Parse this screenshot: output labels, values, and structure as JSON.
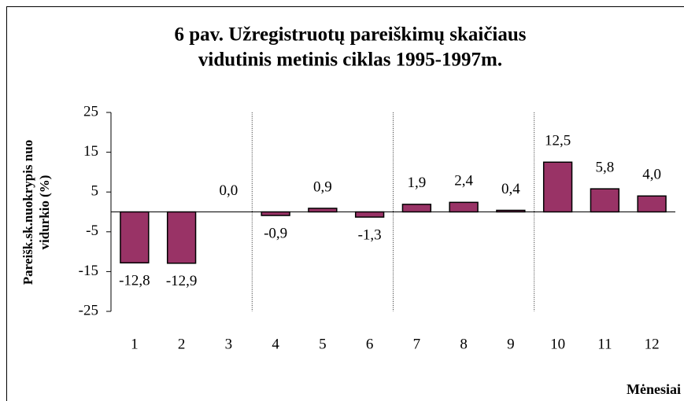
{
  "chart_data": {
    "type": "bar",
    "title": [
      "6 pav. Užregistruotų pareiškimų skaičiaus",
      "vidutinis metinis ciklas 1995-1997m."
    ],
    "y_label": [
      "Pareišk.sk.nuokrypis nuo",
      "vidurkio (%)"
    ],
    "x_label": "Mėnesiai",
    "categories": [
      "1",
      "2",
      "3",
      "4",
      "5",
      "6",
      "7",
      "8",
      "9",
      "10",
      "11",
      "12"
    ],
    "values": [
      -12.8,
      -12.9,
      0.0,
      -0.9,
      0.9,
      -1.3,
      1.9,
      2.4,
      0.4,
      12.5,
      5.8,
      4.0
    ],
    "value_labels": [
      "-12,8",
      "-12,9",
      "0,0",
      "-0,9",
      "0,9",
      "-1,3",
      "1,9",
      "2,4",
      "0,4",
      "12,5",
      "5,8",
      "4,0"
    ],
    "color": "#993366",
    "ylim": [
      -25,
      25
    ],
    "yticks": [
      25,
      15,
      5,
      -5,
      -15,
      -25
    ]
  }
}
